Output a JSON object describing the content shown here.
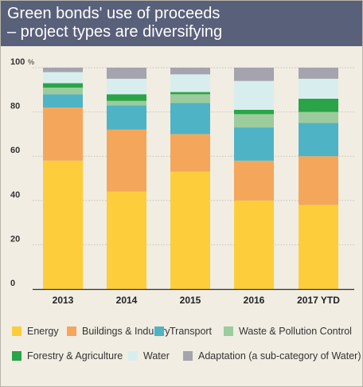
{
  "title": "Green bonds' use of proceeds\n– project types are diversifying",
  "chart_data": {
    "type": "bar",
    "stacked": true,
    "categories": [
      "2013",
      "2014",
      "2015",
      "2016",
      "2017 YTD"
    ],
    "ylim": [
      0,
      100
    ],
    "y_ticks": [
      "100",
      "80",
      "60",
      "40",
      "20",
      "0"
    ],
    "y_unit": "%",
    "grid": true,
    "legend_position": "bottom",
    "series": [
      {
        "name": "Energy",
        "color": "#fdcd3c",
        "values": [
          58,
          44,
          53,
          40,
          38
        ]
      },
      {
        "name": "Buildings & Industry",
        "color": "#f4a75a",
        "values": [
          24,
          28,
          17,
          18,
          22
        ]
      },
      {
        "name": "Transport",
        "color": "#4fb3c6",
        "values": [
          6,
          11,
          14,
          15,
          15
        ]
      },
      {
        "name": "Waste & Pollution Control",
        "color": "#9ccc9d",
        "values": [
          3,
          2,
          4,
          6,
          5
        ]
      },
      {
        "name": "Forestry & Agriculture",
        "color": "#2aa447",
        "values": [
          2,
          3,
          1,
          2,
          6
        ]
      },
      {
        "name": "Water",
        "color": "#d8eeee",
        "values": [
          5,
          7,
          8,
          13,
          9
        ]
      },
      {
        "name": "Adaptation (a sub-category of Water)",
        "color": "#a5a3ad",
        "values": [
          2,
          5,
          3,
          6,
          5
        ]
      }
    ]
  }
}
